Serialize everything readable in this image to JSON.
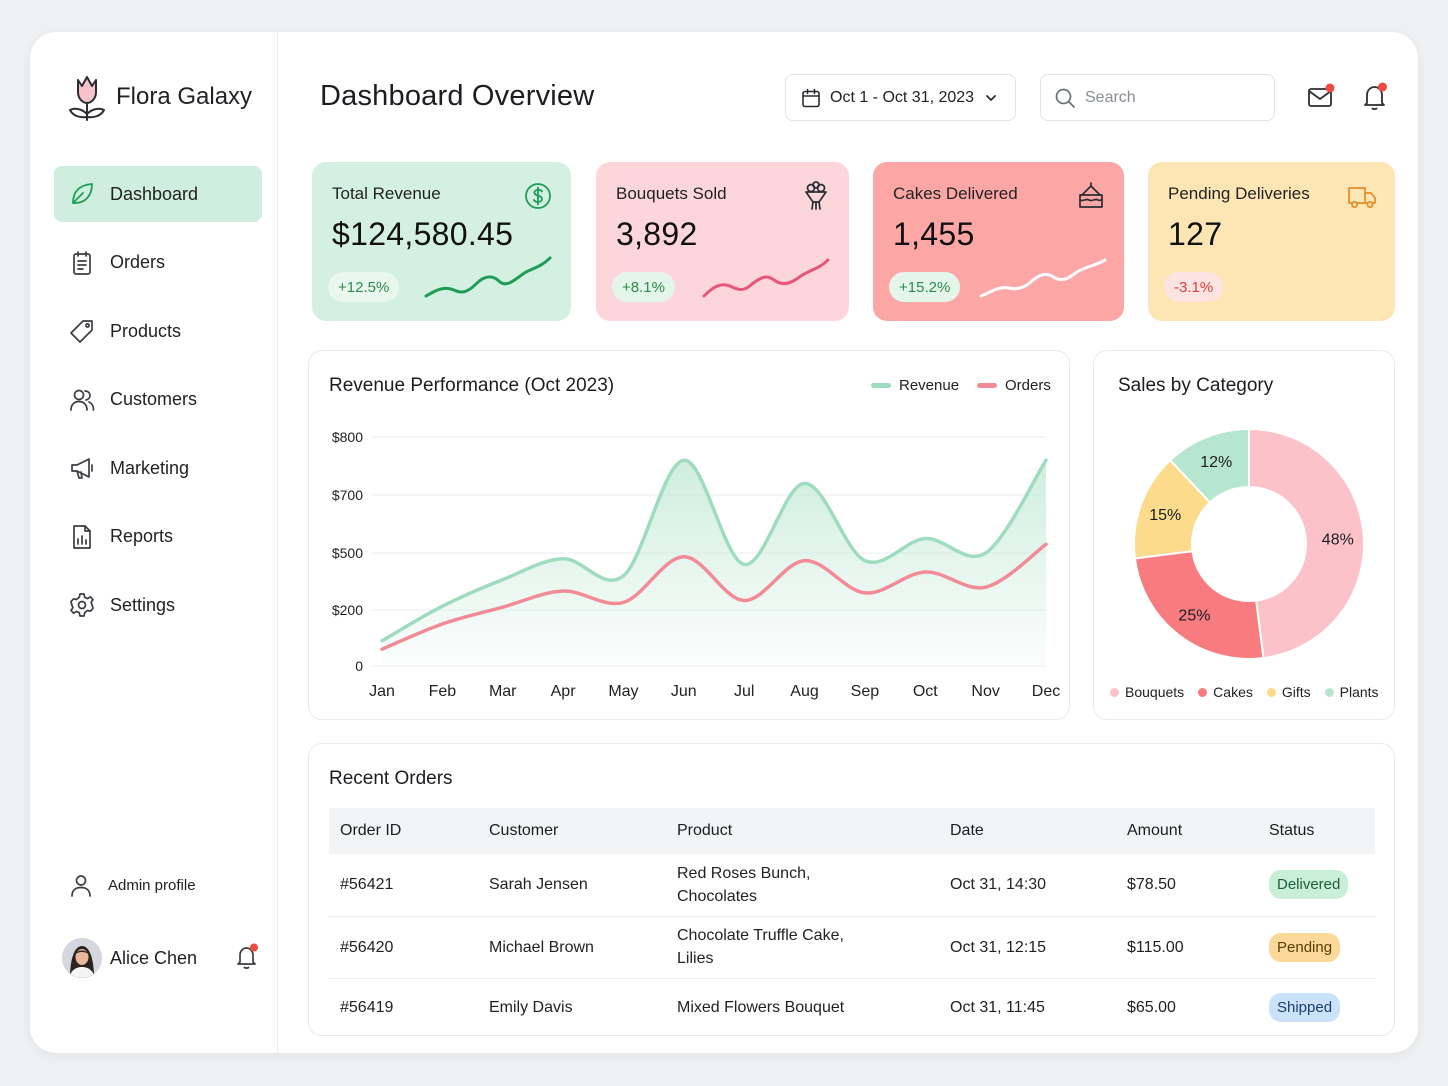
{
  "brand": {
    "name": "Flora Galaxy"
  },
  "sidebar": {
    "items": [
      {
        "label": "Dashboard",
        "icon": "leaf-icon",
        "active": true
      },
      {
        "label": "Orders",
        "icon": "clipboard-icon"
      },
      {
        "label": "Products",
        "icon": "tag-icon"
      },
      {
        "label": "Customers",
        "icon": "users-icon"
      },
      {
        "label": "Marketing",
        "icon": "megaphone-icon"
      },
      {
        "label": "Reports",
        "icon": "report-icon"
      },
      {
        "label": "Settings",
        "icon": "gear-icon"
      }
    ],
    "admin_label": "Admin profile",
    "user_name": "Alice Chen"
  },
  "header": {
    "title": "Dashboard Overview",
    "date_range": "Oct 1 - Oct 31, 2023",
    "search_placeholder": "Search"
  },
  "kpis": [
    {
      "title": "Total Revenue",
      "value": "$124,580.45",
      "change": "+12.5%",
      "icon": "dollar-icon",
      "bg": "#d3f0e2",
      "badge_bg": "#e8f8ef",
      "badge_color": "#2c8a4f",
      "spark_color": "#1f9d55"
    },
    {
      "title": "Bouquets Sold",
      "value": "3,892",
      "change": "+8.1%",
      "icon": "bouquet-icon",
      "bg": "#fdd6db",
      "badge_bg": "#e3f6e9",
      "badge_color": "#2c8a4f",
      "spark_color": "#e8557a"
    },
    {
      "title": "Cakes Delivered",
      "value": "1,455",
      "change": "+15.2%",
      "icon": "cake-icon",
      "bg": "#fca7a6",
      "badge_bg": "#e3f6e9",
      "badge_color": "#2c8a4f",
      "spark_color": "#ffffff"
    },
    {
      "title": "Pending Deliveries",
      "value": "127",
      "change": "-3.1%",
      "icon": "truck-icon",
      "bg": "#fde6b3",
      "badge_bg": "#fde3e1",
      "badge_color": "#d9403a",
      "spark_color": ""
    }
  ],
  "revenue_chart": {
    "title": "Revenue Performance (Oct 2023)",
    "legend": [
      "Revenue",
      "Orders"
    ]
  },
  "chart_data": {
    "type": "area",
    "categories": [
      "Jan",
      "Feb",
      "Mar",
      "Apr",
      "May",
      "Jun",
      "Jul",
      "Aug",
      "Sep",
      "Oct",
      "Nov",
      "Dec"
    ],
    "y_ticks": [
      "$800",
      "$700",
      "$500",
      "$200",
      "0"
    ],
    "series": [
      {
        "name": "Revenue",
        "color": "#9fdcbf",
        "values": [
          90,
          220,
          360,
          470,
          380,
          760,
          440,
          720,
          460,
          550,
          500,
          760
        ]
      },
      {
        "name": "Orders",
        "color": "#f28b96",
        "values": [
          60,
          150,
          215,
          300,
          240,
          480,
          250,
          460,
          290,
          400,
          320,
          530
        ]
      }
    ]
  },
  "category_chart": {
    "title": "Sales by Category",
    "type": "donut",
    "slices": [
      {
        "name": "Bouquets",
        "value": 48,
        "label": "48%",
        "color": "#fbc3c9"
      },
      {
        "name": "Cakes",
        "value": 25,
        "label": "25%",
        "color": "#f87c7f"
      },
      {
        "name": "Gifts",
        "value": 15,
        "label": "15%",
        "color": "#fcdb8c"
      },
      {
        "name": "Plants",
        "value": 12,
        "label": "12%",
        "color": "#b6e6cf"
      }
    ]
  },
  "orders": {
    "title": "Recent Orders",
    "columns": [
      "Order ID",
      "Customer",
      "Product",
      "Date",
      "Amount",
      "Status"
    ],
    "rows": [
      {
        "id": "#56421",
        "customer": "Sarah Jensen",
        "product_line1": "Red Roses Bunch,",
        "product_line2": "Chocolates",
        "date": "Oct 31, 14:30",
        "amount": "$78.50",
        "status": "Delivered",
        "status_bg": "#c9efd9",
        "status_color": "#1e5e3a"
      },
      {
        "id": "#56420",
        "customer": "Michael Brown",
        "product_line1": "Chocolate Truffle Cake,",
        "product_line2": "Lilies",
        "date": "Oct 31, 12:15",
        "amount": "$115.00",
        "status": "Pending",
        "status_bg": "#fcd99a",
        "status_color": "#5a3d05"
      },
      {
        "id": "#56419",
        "customer": "Emily Davis",
        "product_line1": "Mixed Flowers Bouquet",
        "product_line2": "",
        "date": "Oct 31, 11:45",
        "amount": "$65.00",
        "status": "Shipped",
        "status_bg": "#cbe2fb",
        "status_color": "#1c3d6b"
      }
    ]
  },
  "colors": {
    "accent": "#cfeee0",
    "notification": "#f04a43"
  }
}
